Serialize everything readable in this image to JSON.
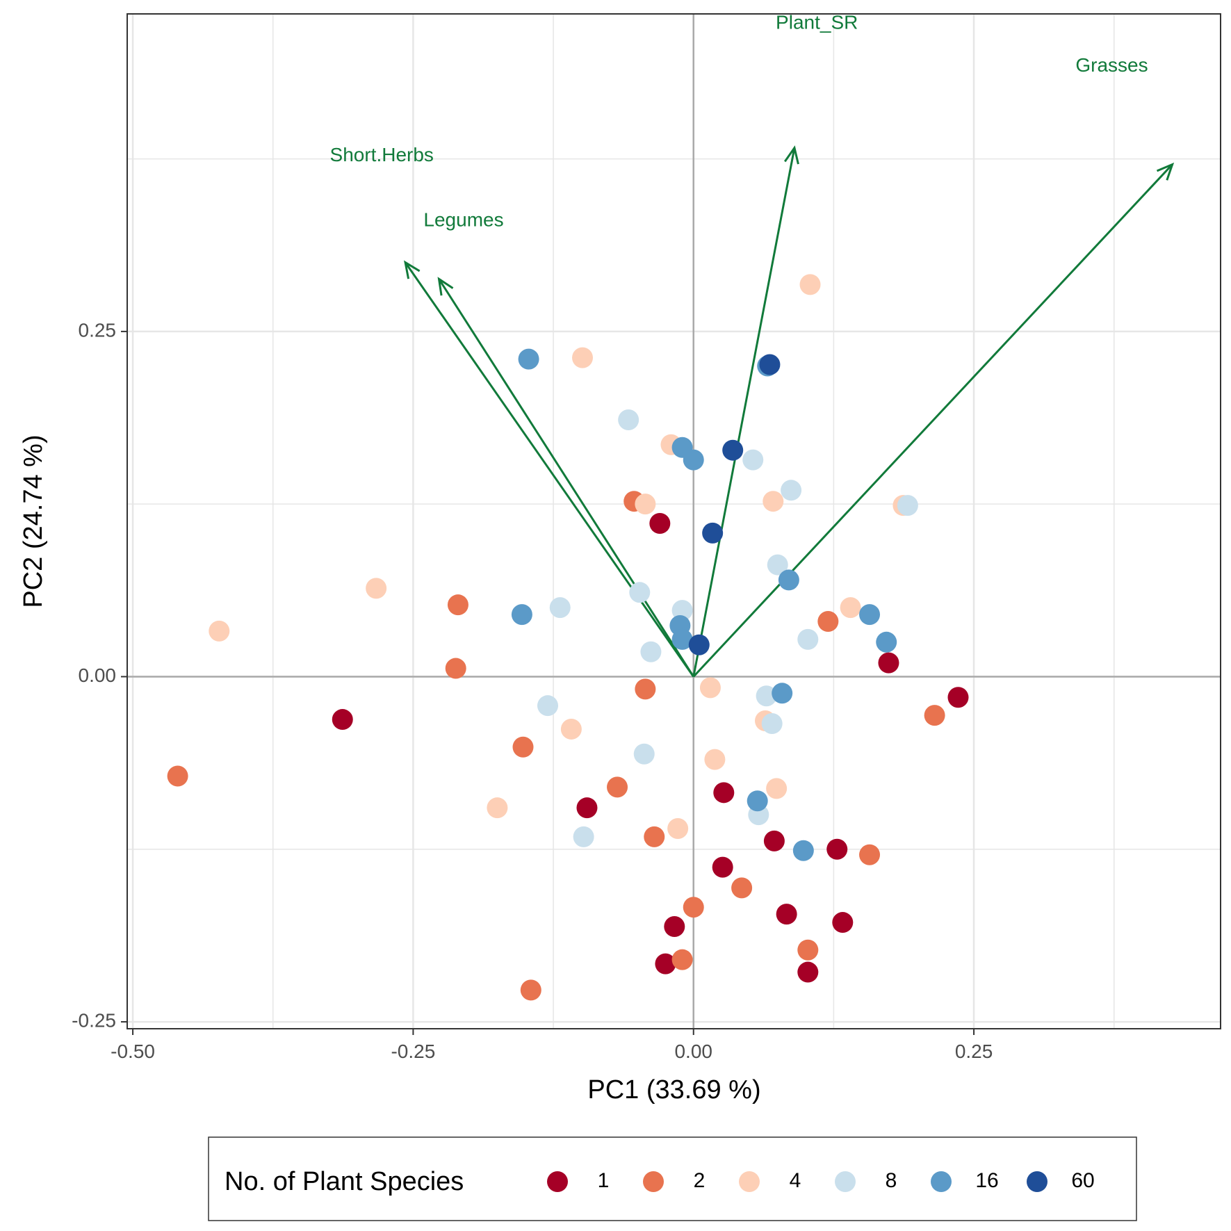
{
  "chart_data": {
    "type": "scatter",
    "title": "",
    "xlabel": "PC1 (33.69 %)",
    "ylabel": "PC2 (24.74 %)",
    "xlim": [
      -0.505,
      0.47
    ],
    "ylim": [
      -0.255,
      0.48
    ],
    "x_ticks": [
      -0.5,
      -0.25,
      0.0,
      0.25
    ],
    "x_tick_labels": [
      "-0.50",
      "-0.25",
      "0.00",
      "0.25"
    ],
    "y_ticks": [
      -0.25,
      0.0,
      0.25
    ],
    "y_tick_labels": [
      "-0.25",
      "0.00",
      "0.25"
    ],
    "grid": true,
    "legend": {
      "title": "No. of Plant Species",
      "position": "bottom",
      "entries": [
        {
          "label": "1",
          "color": "#a50026"
        },
        {
          "label": "2",
          "color": "#e8734f"
        },
        {
          "label": "4",
          "color": "#fdcfb6"
        },
        {
          "label": "8",
          "color": "#c9dfec"
        },
        {
          "label": "16",
          "color": "#5b9ac8"
        },
        {
          "label": "60",
          "color": "#1f4e98"
        }
      ]
    },
    "arrows": [
      {
        "name": "Plant_SR",
        "x": 0.09,
        "y": 0.383,
        "label_x": 0.11,
        "label_y": 0.473,
        "color": "#117a3a"
      },
      {
        "name": "Grasses",
        "x": 0.427,
        "y": 0.371,
        "label_x": 0.373,
        "label_y": 0.442,
        "color": "#117a3a"
      },
      {
        "name": "Short.Herbs",
        "x": -0.257,
        "y": 0.3,
        "label_x": -0.278,
        "label_y": 0.377,
        "color": "#117a3a"
      },
      {
        "name": "Legumes",
        "x": -0.227,
        "y": 0.288,
        "label_x": -0.205,
        "label_y": 0.33,
        "color": "#117a3a"
      }
    ],
    "series": [
      {
        "name": "1",
        "color": "#a50026",
        "points": [
          [
            -0.313,
            -0.031
          ],
          [
            -0.03,
            0.111
          ],
          [
            0.174,
            0.01
          ],
          [
            0.236,
            -0.015
          ],
          [
            -0.095,
            -0.095
          ],
          [
            0.027,
            -0.084
          ],
          [
            0.072,
            -0.119
          ],
          [
            0.128,
            -0.125
          ],
          [
            0.026,
            -0.138
          ],
          [
            0.083,
            -0.172
          ],
          [
            0.133,
            -0.178
          ],
          [
            -0.017,
            -0.181
          ],
          [
            0.102,
            -0.214
          ],
          [
            -0.025,
            -0.208
          ]
        ]
      },
      {
        "name": "2",
        "color": "#e8734f",
        "points": [
          [
            -0.46,
            -0.072
          ],
          [
            -0.21,
            0.052
          ],
          [
            -0.212,
            0.006
          ],
          [
            -0.152,
            -0.051
          ],
          [
            -0.053,
            0.127
          ],
          [
            -0.043,
            -0.009
          ],
          [
            -0.068,
            -0.08
          ],
          [
            -0.035,
            -0.116
          ],
          [
            0.12,
            0.04
          ],
          [
            0.215,
            -0.028
          ],
          [
            0.157,
            -0.129
          ],
          [
            0.043,
            -0.153
          ],
          [
            0.0,
            -0.167
          ],
          [
            0.102,
            -0.198
          ],
          [
            -0.01,
            -0.205
          ],
          [
            -0.145,
            -0.227
          ]
        ]
      },
      {
        "name": "4",
        "color": "#fdcfb6",
        "points": [
          [
            -0.423,
            0.033
          ],
          [
            -0.283,
            0.064
          ],
          [
            -0.099,
            0.231
          ],
          [
            -0.02,
            0.168
          ],
          [
            -0.043,
            0.125
          ],
          [
            0.104,
            0.284
          ],
          [
            0.071,
            0.127
          ],
          [
            0.187,
            0.124
          ],
          [
            0.14,
            0.05
          ],
          [
            -0.109,
            -0.038
          ],
          [
            -0.175,
            -0.095
          ],
          [
            0.015,
            -0.008
          ],
          [
            0.019,
            -0.06
          ],
          [
            0.064,
            -0.032
          ],
          [
            0.074,
            -0.081
          ],
          [
            -0.014,
            -0.11
          ]
        ]
      },
      {
        "name": "8",
        "color": "#c9dfec",
        "points": [
          [
            -0.058,
            0.186
          ],
          [
            0.053,
            0.157
          ],
          [
            0.087,
            0.135
          ],
          [
            0.191,
            0.124
          ],
          [
            0.075,
            0.081
          ],
          [
            -0.119,
            0.05
          ],
          [
            -0.048,
            0.061
          ],
          [
            -0.01,
            0.048
          ],
          [
            -0.038,
            0.018
          ],
          [
            0.102,
            0.027
          ],
          [
            -0.13,
            -0.021
          ],
          [
            0.065,
            -0.014
          ],
          [
            0.07,
            -0.034
          ],
          [
            -0.044,
            -0.056
          ],
          [
            0.058,
            -0.1
          ],
          [
            -0.098,
            -0.116
          ]
        ]
      },
      {
        "name": "16",
        "color": "#5b9ac8",
        "points": [
          [
            -0.147,
            0.23
          ],
          [
            0.066,
            0.225
          ],
          [
            -0.01,
            0.166
          ],
          [
            0.0,
            0.157
          ],
          [
            0.085,
            0.07
          ],
          [
            -0.153,
            0.045
          ],
          [
            -0.012,
            0.037
          ],
          [
            -0.01,
            0.027
          ],
          [
            0.157,
            0.045
          ],
          [
            0.172,
            0.025
          ],
          [
            0.079,
            -0.012
          ],
          [
            0.057,
            -0.09
          ],
          [
            0.098,
            -0.126
          ]
        ]
      },
      {
        "name": "60",
        "color": "#1f4e98",
        "points": [
          [
            0.068,
            0.226
          ],
          [
            0.035,
            0.164
          ],
          [
            0.017,
            0.104
          ],
          [
            0.005,
            0.023
          ]
        ]
      }
    ]
  }
}
